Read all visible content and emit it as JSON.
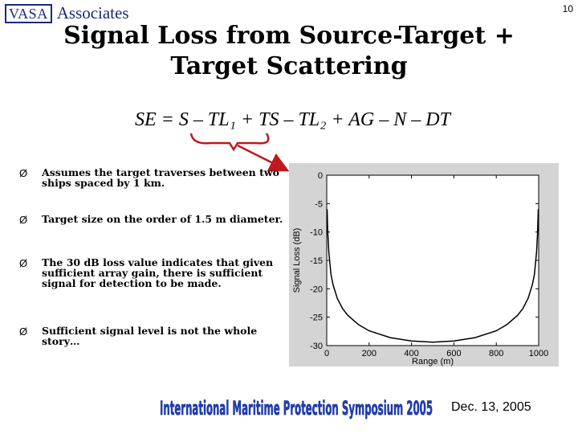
{
  "header": {
    "logo_box": "VASA",
    "logo_text": "Associates",
    "page_number": "10"
  },
  "title_line1": "Signal Loss from Source-Target +",
  "title_line2": "Target Scattering",
  "equation": "SE = S – TL₁ + TS – TL₂ + AG – N – DT",
  "bullets": [
    {
      "marker": "Ø",
      "text": "Assumes the target traverses between two ships spaced by 1 km."
    },
    {
      "marker": "Ø",
      "text": "Target size on the order of 1.5 m diameter."
    },
    {
      "marker": "Ø",
      "text": "The 30 dB loss value indicates that given sufficient array gain, there is sufficient signal for detection to be made."
    },
    {
      "marker": "Ø",
      "text": "Sufficient signal level is not the whole story…"
    }
  ],
  "footer": {
    "banner": "International Maritime Protection Symposium 2005",
    "date": "Dec. 13, 2005"
  },
  "colors": {
    "annotation": "#c0181f",
    "banner": "#1f3fbf",
    "logo": "#1a2a7a"
  },
  "chart_data": {
    "type": "line",
    "xlabel": "Range (m)",
    "ylabel": "Signal Loss (dB)",
    "xlim": [
      0,
      1000
    ],
    "ylim": [
      -30,
      0
    ],
    "xticks": [
      0,
      200,
      400,
      600,
      800,
      1000
    ],
    "yticks": [
      0,
      -5,
      -10,
      -15,
      -20,
      -25,
      -30
    ],
    "grid": false,
    "series": [
      {
        "x": [
          2,
          5,
          10,
          20,
          30,
          50,
          75,
          100,
          150,
          200,
          300,
          400,
          500,
          600,
          700,
          800,
          850,
          900,
          925,
          950,
          970,
          980,
          990,
          995,
          998
        ],
        "values": [
          -6,
          -10,
          -13.5,
          -17.5,
          -19.3,
          -21.7,
          -23.5,
          -24.7,
          -26.3,
          -27.4,
          -28.6,
          -29.2,
          -29.4,
          -29.2,
          -28.6,
          -27.4,
          -26.3,
          -24.7,
          -23.5,
          -21.7,
          -19.3,
          -17.5,
          -13.5,
          -10,
          -6
        ]
      }
    ]
  }
}
